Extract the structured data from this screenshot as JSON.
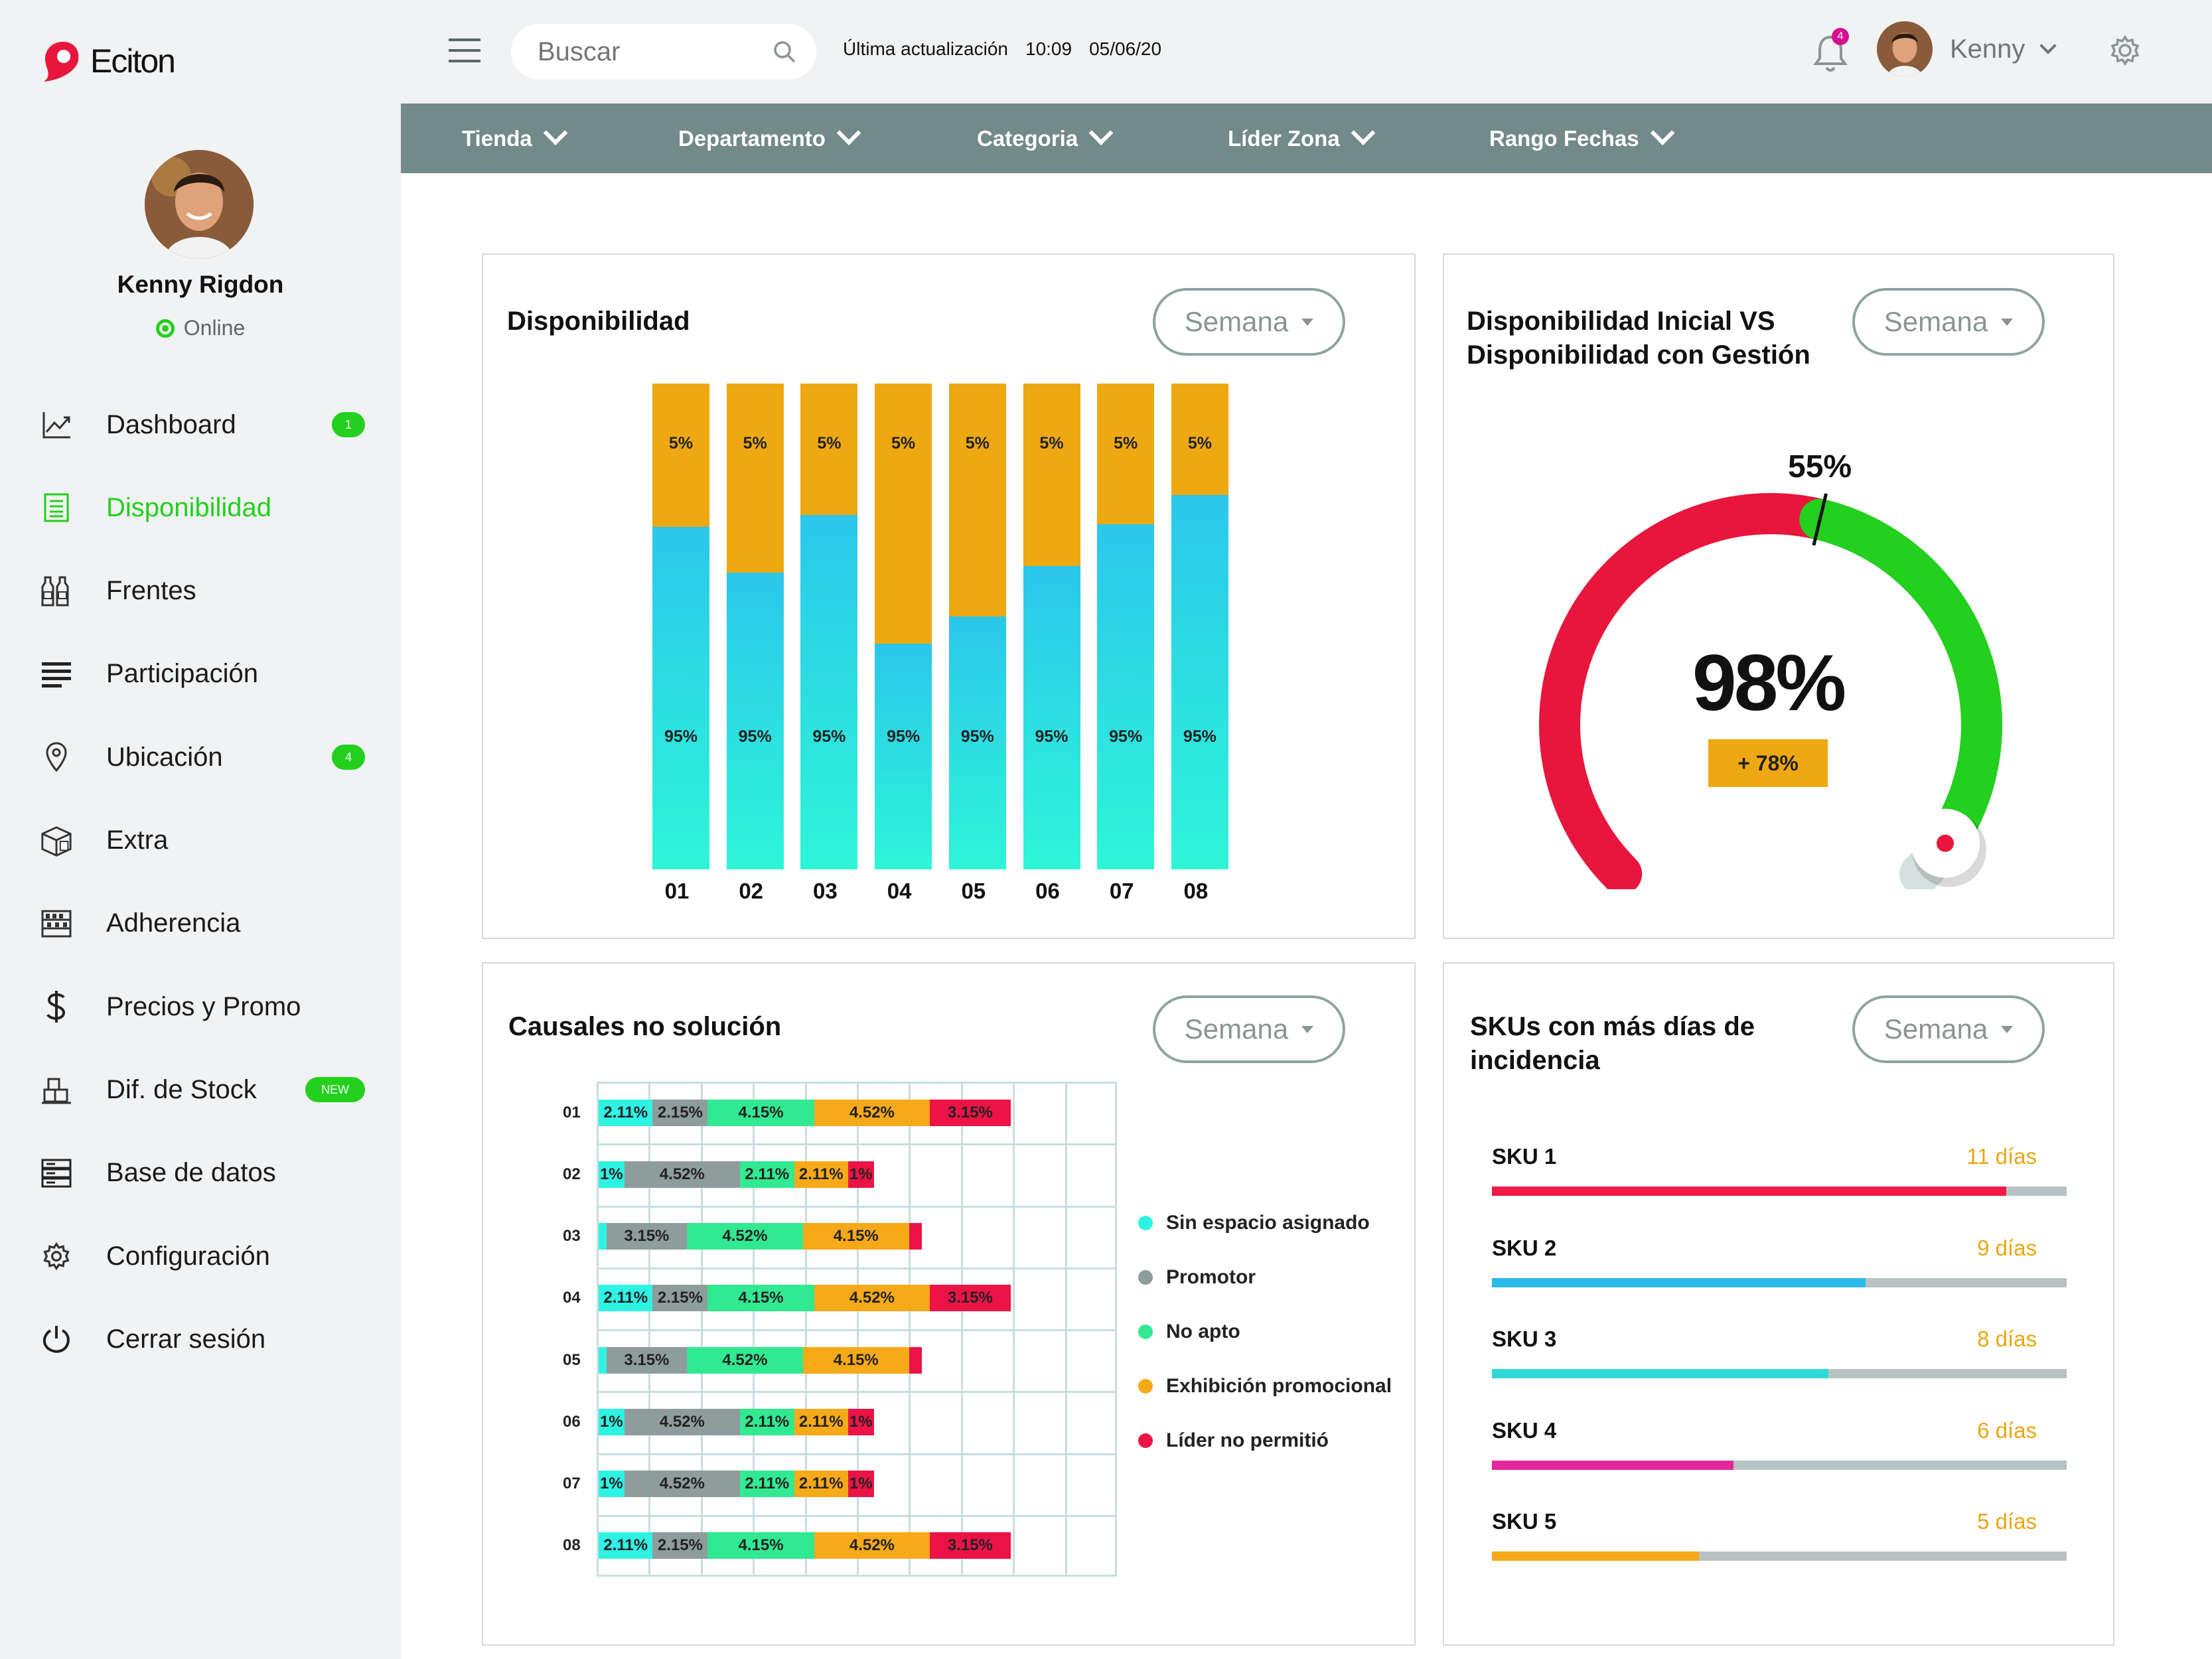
{
  "brand": {
    "name": "Eciton",
    "accent": "#e8163c"
  },
  "user": {
    "name": "Kenny Rigdon",
    "status": "Online",
    "short_name": "Kenny",
    "notifications": "4"
  },
  "search": {
    "placeholder": "Buscar"
  },
  "update": {
    "label": "Última actualización",
    "time": "10:09",
    "date": "05/06/20"
  },
  "nav": [
    {
      "label": "Dashboard",
      "icon": "trend-chart-icon",
      "badge": "1",
      "active": false
    },
    {
      "label": "Disponibilidad",
      "icon": "document-list-icon",
      "badge": "",
      "active": true
    },
    {
      "label": "Frentes",
      "icon": "bottles-icon",
      "badge": "",
      "active": false
    },
    {
      "label": "Participación",
      "icon": "text-lines-icon",
      "badge": "",
      "active": false
    },
    {
      "label": "Ubicación",
      "icon": "location-pin-icon",
      "badge": "4",
      "active": false
    },
    {
      "label": "Extra",
      "icon": "box-icon",
      "badge": "",
      "active": false
    },
    {
      "label": "Adherencia",
      "icon": "shelf-icon",
      "badge": "",
      "active": false
    },
    {
      "label": "Precios y Promo",
      "icon": "dollar-icon",
      "badge": "",
      "active": false
    },
    {
      "label": "Dif. de Stock",
      "icon": "stock-boxes-icon",
      "badge": "NEW",
      "active": false
    },
    {
      "label": "Base de datos",
      "icon": "database-icon",
      "badge": "",
      "active": false
    },
    {
      "label": "Configuración",
      "icon": "gear-icon",
      "badge": "",
      "active": false
    },
    {
      "label": "Cerrar sesión",
      "icon": "power-icon",
      "badge": "",
      "active": false
    }
  ],
  "filters": [
    "Tienda",
    "Departamento",
    "Categoria",
    "Líder Zona",
    "Rango Fechas"
  ],
  "period": "Semana",
  "cards": {
    "disponibilidad": {
      "title": "Disponibilidad",
      "chart_data": {
        "type": "bar",
        "stacked": true,
        "categories": [
          "01",
          "02",
          "03",
          "04",
          "05",
          "06",
          "07",
          "08"
        ],
        "series": [
          {
            "values": [
              95,
              95,
              95,
              95,
              95,
              95,
              95,
              95
            ],
            "labels": [
              "95%",
              "95%",
              "95%",
              "95%",
              "95%",
              "95%",
              "95%",
              "95%"
            ],
            "color": "#2ed3e8"
          },
          {
            "values": [
              5,
              5,
              5,
              5,
              5,
              5,
              5,
              5
            ],
            "labels": [
              "5%",
              "5%",
              "5%",
              "5%",
              "5%",
              "5%",
              "5%",
              "5%"
            ],
            "color": "#eea812"
          }
        ],
        "bar_fraction_bottom": [
          0.705,
          0.61,
          0.73,
          0.465,
          0.52,
          0.625,
          0.71,
          0.77
        ]
      }
    },
    "gauge": {
      "title_line1": "Disponibilidad Inicial VS",
      "title_line2": "Disponibilidad con Gestión",
      "value": "98%",
      "change": "+ 78%",
      "marker": "55%",
      "marker_fraction": 0.55,
      "knob_fraction": 0.98,
      "colors": {
        "low": "#e8163c",
        "high": "#22d01d",
        "rest": "#d4e0df",
        "change_bg": "#eea812"
      }
    },
    "causales": {
      "title": "Causales no solución",
      "chart_data": {
        "type": "bar",
        "orientation": "horizontal",
        "stacked": true,
        "categories": [
          "01",
          "02",
          "03",
          "04",
          "05",
          "06",
          "07",
          "08"
        ],
        "series": [
          {
            "name": "Sin espacio asignado",
            "color": "#2ef3e3",
            "values": [
              2.11,
              1,
              0.3,
              2.11,
              0.3,
              1,
              1,
              2.11
            ],
            "labels": [
              "2.11%",
              "1%",
              "",
              "2.11%",
              "",
              "1%",
              "1%",
              "2.11%"
            ]
          },
          {
            "name": "Promotor",
            "color": "#8e9c9b",
            "values": [
              2.15,
              4.52,
              3.15,
              2.15,
              3.15,
              4.52,
              4.52,
              2.15
            ],
            "labels": [
              "2.15%",
              "4.52%",
              "3.15%",
              "2.15%",
              "3.15%",
              "4.52%",
              "4.52%",
              "2.15%"
            ]
          },
          {
            "name": "No apto",
            "color": "#31e991",
            "values": [
              4.15,
              2.11,
              4.52,
              4.15,
              4.52,
              2.11,
              2.11,
              4.15
            ],
            "labels": [
              "4.15%",
              "2.11%",
              "4.52%",
              "4.15%",
              "4.52%",
              "2.11%",
              "2.11%",
              "4.15%"
            ]
          },
          {
            "name": "Exhibición promocional",
            "color": "#f6a919",
            "values": [
              4.52,
              2.11,
              4.15,
              4.52,
              4.15,
              2.11,
              2.11,
              4.52
            ],
            "labels": [
              "4.52%",
              "2.11%",
              "4.15%",
              "4.52%",
              "4.15%",
              "2.11%",
              "2.11%",
              "4.52%"
            ]
          },
          {
            "name": "Líder no permitió",
            "color": "#ec1346",
            "values": [
              3.15,
              1,
              0.5,
              3.15,
              0.5,
              1,
              1,
              3.15
            ],
            "labels": [
              "3.15%",
              "1%",
              "",
              "3.15%",
              "",
              "1%",
              "1%",
              "3.15%"
            ]
          }
        ],
        "grid": true,
        "legend": "right"
      }
    },
    "skus": {
      "title_line1": "SKUs con más días de",
      "title_line2": "incidencia",
      "items": [
        {
          "name": "SKU 1",
          "days": "11 días",
          "value": 11,
          "fraction": 0.895,
          "color": "#ef1847"
        },
        {
          "name": "SKU 2",
          "days": "9 días",
          "value": 9,
          "fraction": 0.65,
          "color": "#2bbbe8"
        },
        {
          "name": "SKU 3",
          "days": "8 días",
          "value": 8,
          "fraction": 0.585,
          "color": "#2ed8d8"
        },
        {
          "name": "SKU 4",
          "days": "6 días",
          "value": 6,
          "fraction": 0.42,
          "color": "#e5289a"
        },
        {
          "name": "SKU 5",
          "days": "5 días",
          "value": 5,
          "fraction": 0.36,
          "color": "#f6a919"
        }
      ]
    }
  }
}
